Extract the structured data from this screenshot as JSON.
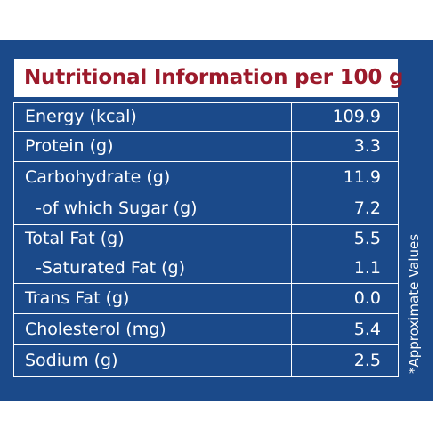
{
  "title": "Nutritional Information per 100 g",
  "rows": [
    {
      "label": "Energy (kcal)",
      "value": "109.9"
    },
    {
      "label": "Protein (g)",
      "value": "3.3"
    },
    {
      "label": "Carbohydrate (g)",
      "value": "11.9"
    },
    {
      "label": "  -of which Sugar (g)",
      "value": "7.2"
    },
    {
      "label": "Total Fat (g)",
      "value": "5.5"
    },
    {
      "label": "  -Saturated Fat (g)",
      "value": "1.1"
    },
    {
      "label": "Trans Fat (g)",
      "value": "0.0"
    },
    {
      "label": "Cholesterol (mg)",
      "value": "5.4"
    },
    {
      "label": "Sodium (g)",
      "value": "2.5"
    }
  ],
  "side_note": "*Approximate Values",
  "colors": {
    "panel_blue": "#1b4a8a",
    "title_red": "#9c1a2b",
    "text_white": "#ffffff"
  }
}
